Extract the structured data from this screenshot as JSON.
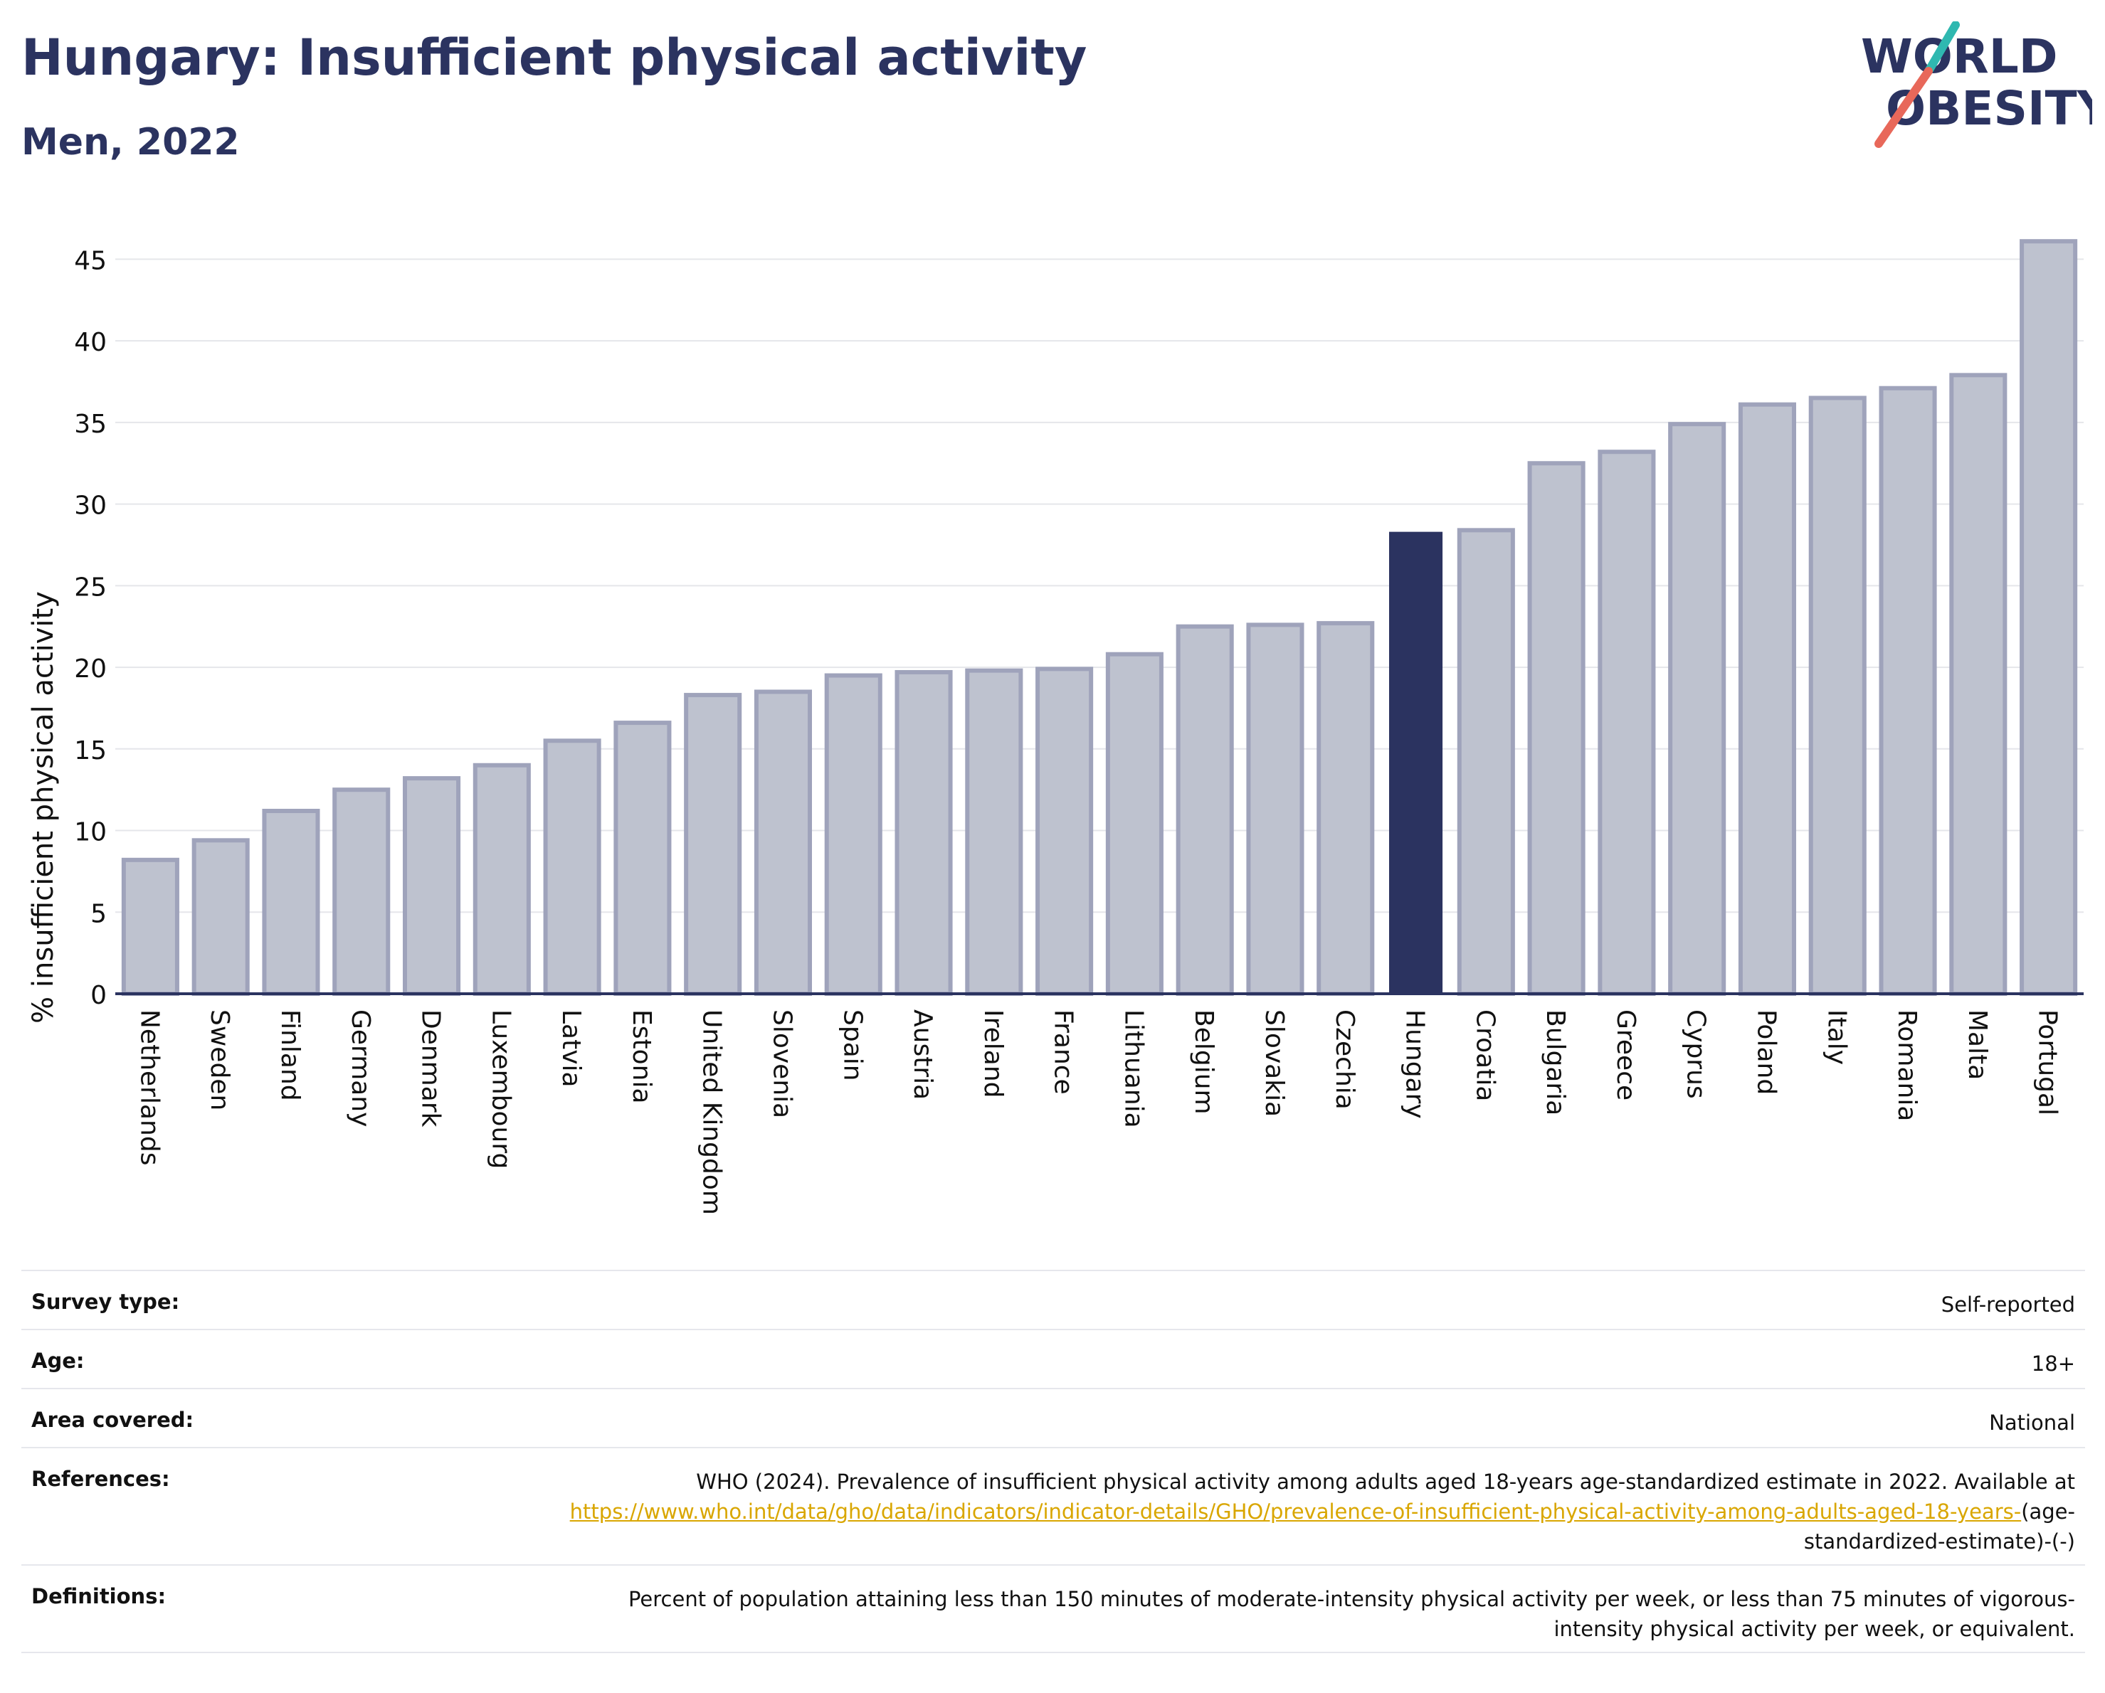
{
  "header": {
    "title": "Hungary: Insufficient physical activity",
    "subtitle": "Men, 2022"
  },
  "logo": {
    "line1": "WORLD",
    "line2": "OBESITY",
    "colors": {
      "navy": "#2b3360",
      "teal": "#2fb8b0",
      "coral": "#e8685a"
    }
  },
  "chart_data": {
    "type": "bar",
    "ylabel": "% insufficient physical activity",
    "ylim": [
      0,
      46.5
    ],
    "yticks": [
      0,
      5,
      10,
      15,
      20,
      25,
      30,
      35,
      40,
      45
    ],
    "grid": true,
    "highlight": "Hungary",
    "colors": {
      "bar": "#bec2cf",
      "bar_border": "#9fa3bb",
      "highlight": "#2b3360",
      "axis": "#2b3360",
      "grid": "#e5e6ea"
    },
    "categories": [
      "Netherlands",
      "Sweden",
      "Finland",
      "Germany",
      "Denmark",
      "Luxembourg",
      "Latvia",
      "Estonia",
      "United Kingdom",
      "Slovenia",
      "Spain",
      "Austria",
      "Ireland",
      "France",
      "Lithuania",
      "Belgium",
      "Slovakia",
      "Czechia",
      "Hungary",
      "Croatia",
      "Bulgaria",
      "Greece",
      "Cyprus",
      "Poland",
      "Italy",
      "Romania",
      "Malta",
      "Portugal"
    ],
    "values": [
      8.2,
      9.4,
      11.2,
      12.5,
      13.2,
      14.0,
      15.5,
      16.6,
      18.3,
      18.5,
      19.5,
      19.7,
      19.8,
      19.9,
      20.8,
      22.5,
      22.6,
      22.7,
      28.3,
      28.4,
      32.5,
      33.2,
      34.9,
      36.1,
      36.5,
      37.1,
      37.9,
      46.1
    ]
  },
  "info": {
    "survey_type": {
      "label": "Survey type:",
      "value": "Self-reported"
    },
    "age": {
      "label": "Age:",
      "value": "18+"
    },
    "area": {
      "label": "Area covered:",
      "value": "National"
    },
    "references": {
      "label": "References:",
      "text": "WHO (2024). Prevalence of insufficient physical activity among adults aged 18-years age-standardized estimate in 2022. Available at",
      "link": "https://www.who.int/data/gho/data/indicators/indicator-details/GHO/prevalence-of-insufficient-physical-activity-among-adults-aged-18-years-",
      "suffix": "(age-standardized-estimate)-(-)"
    },
    "definitions": {
      "label": "Definitions:",
      "value": "Percent of population attaining less than 150 minutes of moderate-intensity physical activity per week, or less than 75 minutes of vigorous-intensity physical activity per week, or equivalent."
    }
  }
}
